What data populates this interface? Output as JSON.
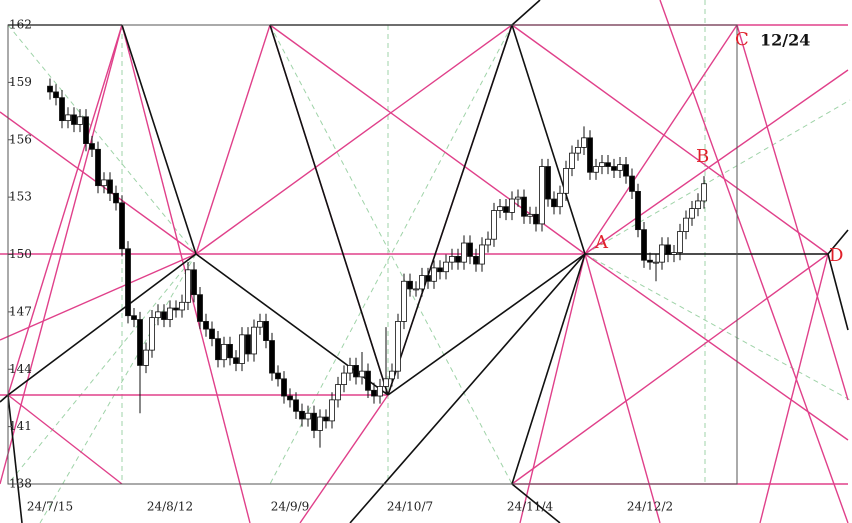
{
  "chart_data": {
    "type": "candlestick",
    "categories": [
      "24/7/15",
      null,
      null,
      null,
      null,
      null,
      null,
      null,
      null,
      null,
      null,
      null,
      null,
      null,
      null,
      null,
      null,
      null,
      null,
      null,
      "24/8/12",
      null,
      null,
      null,
      null,
      null,
      null,
      null,
      null,
      null,
      null,
      null,
      null,
      null,
      null,
      null,
      null,
      null,
      null,
      null,
      "24/9/9",
      null,
      null,
      null,
      null,
      null,
      null,
      null,
      null,
      null,
      null,
      null,
      null,
      null,
      null,
      null,
      null,
      null,
      null,
      null,
      "24/10/7",
      null,
      null,
      null,
      null,
      null,
      null,
      null,
      null,
      null,
      null,
      null,
      null,
      null,
      null,
      null,
      null,
      null,
      null,
      null,
      "24/11/4",
      null,
      null,
      null,
      null,
      null,
      null,
      null,
      null,
      null,
      null,
      null,
      null,
      null,
      null,
      null,
      null,
      null,
      null,
      null,
      "24/12/2",
      null,
      null,
      null,
      null,
      null,
      null,
      null,
      null,
      null
    ],
    "ohlc": [
      [
        158.8,
        159.2,
        158.1,
        158.5
      ],
      [
        158.5,
        158.9,
        157.8,
        158.2
      ],
      [
        158.2,
        158.6,
        156.6,
        157.0
      ],
      [
        157.0,
        157.7,
        156.6,
        157.3
      ],
      [
        157.3,
        157.7,
        156.4,
        156.8
      ],
      [
        156.8,
        157.6,
        156.4,
        157.2
      ],
      [
        157.2,
        157.6,
        155.4,
        155.8
      ],
      [
        155.8,
        156.2,
        155.1,
        155.5
      ],
      [
        155.5,
        155.9,
        153.2,
        153.6
      ],
      [
        153.6,
        154.3,
        153.2,
        153.9
      ],
      [
        153.9,
        154.3,
        152.8,
        153.2
      ],
      [
        153.2,
        153.6,
        152.3,
        152.7
      ],
      [
        152.7,
        153.1,
        149.9,
        150.3
      ],
      [
        150.3,
        150.7,
        146.4,
        146.8
      ],
      [
        146.8,
        147.2,
        146.2,
        146.6
      ],
      [
        146.6,
        147.0,
        141.7,
        144.2
      ],
      [
        144.2,
        145.4,
        143.8,
        145.0
      ],
      [
        145.0,
        147.1,
        144.6,
        146.7
      ],
      [
        146.7,
        147.4,
        146.3,
        147.0
      ],
      [
        147.0,
        147.4,
        146.2,
        146.6
      ],
      [
        146.6,
        147.6,
        146.2,
        147.2
      ],
      [
        147.2,
        147.6,
        146.7,
        147.1
      ],
      [
        147.1,
        147.9,
        146.7,
        147.5
      ],
      [
        147.5,
        149.6,
        147.1,
        149.2
      ],
      [
        149.2,
        149.6,
        147.5,
        147.9
      ],
      [
        147.9,
        148.3,
        146.1,
        146.5
      ],
      [
        146.5,
        146.9,
        145.7,
        146.1
      ],
      [
        146.1,
        146.5,
        145.2,
        145.6
      ],
      [
        145.6,
        146.0,
        144.1,
        144.5
      ],
      [
        144.5,
        145.7,
        144.1,
        145.3
      ],
      [
        145.3,
        145.7,
        144.2,
        144.6
      ],
      [
        144.6,
        145.0,
        143.9,
        144.3
      ],
      [
        144.3,
        146.2,
        143.9,
        145.8
      ],
      [
        145.8,
        146.2,
        144.4,
        144.8
      ],
      [
        144.8,
        146.6,
        144.4,
        146.2
      ],
      [
        146.2,
        146.9,
        145.8,
        146.5
      ],
      [
        146.5,
        146.9,
        145.1,
        145.5
      ],
      [
        145.5,
        145.9,
        143.4,
        143.8
      ],
      [
        143.8,
        144.2,
        143.1,
        143.5
      ],
      [
        143.5,
        143.9,
        142.2,
        142.6
      ],
      [
        142.6,
        143.0,
        142.0,
        142.4
      ],
      [
        142.4,
        142.8,
        141.4,
        141.8
      ],
      [
        141.8,
        142.2,
        141.0,
        141.4
      ],
      [
        141.4,
        142.1,
        141.0,
        141.7
      ],
      [
        141.7,
        142.1,
        140.4,
        140.8
      ],
      [
        140.8,
        141.9,
        139.9,
        141.5
      ],
      [
        141.5,
        141.9,
        140.9,
        141.3
      ],
      [
        141.3,
        142.8,
        140.9,
        142.4
      ],
      [
        142.4,
        143.6,
        142.0,
        143.2
      ],
      [
        143.2,
        144.2,
        142.8,
        143.8
      ],
      [
        143.8,
        144.6,
        143.4,
        144.2
      ],
      [
        144.2,
        144.6,
        143.2,
        143.6
      ],
      [
        143.6,
        144.9,
        143.2,
        143.9
      ],
      [
        143.9,
        144.3,
        142.5,
        142.9
      ],
      [
        142.9,
        143.3,
        142.2,
        142.6
      ],
      [
        142.6,
        143.5,
        142.2,
        143.1
      ],
      [
        143.1,
        146.2,
        142.7,
        143.5
      ],
      [
        143.5,
        144.3,
        143.1,
        143.9
      ],
      [
        143.9,
        146.9,
        143.5,
        146.5
      ],
      [
        146.5,
        149.0,
        146.1,
        148.6
      ],
      [
        148.6,
        149.0,
        147.8,
        148.2
      ],
      [
        148.2,
        148.6,
        147.8,
        148.2
      ],
      [
        148.2,
        149.3,
        147.8,
        148.9
      ],
      [
        148.9,
        149.3,
        148.2,
        148.6
      ],
      [
        148.6,
        149.7,
        148.2,
        149.3
      ],
      [
        149.3,
        149.7,
        148.7,
        149.1
      ],
      [
        149.1,
        150.0,
        148.7,
        149.6
      ],
      [
        149.6,
        150.3,
        149.2,
        149.9
      ],
      [
        149.9,
        150.3,
        149.2,
        149.6
      ],
      [
        149.6,
        151.0,
        149.2,
        150.6
      ],
      [
        150.6,
        151.0,
        149.5,
        149.9
      ],
      [
        149.9,
        150.3,
        149.1,
        149.5
      ],
      [
        149.5,
        150.9,
        149.1,
        150.5
      ],
      [
        150.5,
        151.2,
        150.1,
        150.8
      ],
      [
        150.8,
        152.7,
        150.4,
        152.3
      ],
      [
        152.3,
        152.9,
        151.9,
        152.5
      ],
      [
        152.5,
        152.9,
        151.8,
        152.2
      ],
      [
        152.2,
        153.3,
        151.8,
        152.9
      ],
      [
        152.9,
        153.4,
        152.5,
        153.0
      ],
      [
        153.0,
        153.4,
        151.6,
        152.0
      ],
      [
        152.0,
        152.5,
        151.6,
        152.1
      ],
      [
        152.1,
        152.5,
        151.2,
        151.6
      ],
      [
        151.6,
        155.0,
        151.2,
        154.6
      ],
      [
        154.6,
        155.0,
        152.5,
        152.9
      ],
      [
        152.9,
        153.3,
        152.1,
        152.5
      ],
      [
        152.5,
        153.6,
        152.1,
        153.2
      ],
      [
        153.2,
        154.9,
        152.8,
        154.5
      ],
      [
        154.5,
        155.7,
        154.1,
        155.3
      ],
      [
        155.3,
        156.0,
        154.9,
        155.6
      ],
      [
        155.6,
        156.7,
        155.2,
        156.1
      ],
      [
        156.1,
        156.5,
        153.9,
        154.3
      ],
      [
        154.3,
        155.0,
        153.9,
        154.6
      ],
      [
        154.6,
        155.2,
        154.2,
        154.8
      ],
      [
        154.8,
        155.2,
        154.2,
        154.6
      ],
      [
        154.6,
        155.0,
        154.0,
        154.4
      ],
      [
        154.4,
        155.1,
        154.0,
        154.7
      ],
      [
        154.7,
        155.1,
        153.7,
        154.1
      ],
      [
        154.1,
        154.5,
        152.9,
        153.3
      ],
      [
        153.3,
        153.7,
        150.9,
        151.3
      ],
      [
        151.3,
        151.7,
        149.3,
        149.7
      ],
      [
        149.7,
        150.1,
        149.2,
        149.6
      ],
      [
        149.6,
        150.0,
        148.6,
        149.6
      ],
      [
        149.6,
        150.9,
        149.2,
        150.5
      ],
      [
        150.5,
        150.9,
        149.6,
        150.0
      ],
      [
        150.0,
        150.5,
        149.6,
        150.1
      ],
      [
        150.1,
        151.6,
        149.7,
        151.2
      ],
      [
        151.2,
        152.3,
        150.8,
        151.9
      ],
      [
        151.9,
        152.8,
        151.5,
        152.4
      ],
      [
        152.4,
        153.2,
        152.0,
        152.8
      ],
      [
        152.8,
        154.1,
        152.4,
        153.7
      ]
    ],
    "ylim": [
      138,
      162
    ],
    "yticks": [
      138,
      141,
      144,
      147,
      150,
      153,
      156,
      159,
      162
    ],
    "up_color": "#ffffff",
    "down_color": "#000000",
    "annotations": [
      "A",
      "B",
      "C",
      "12/24",
      "D"
    ]
  }
}
